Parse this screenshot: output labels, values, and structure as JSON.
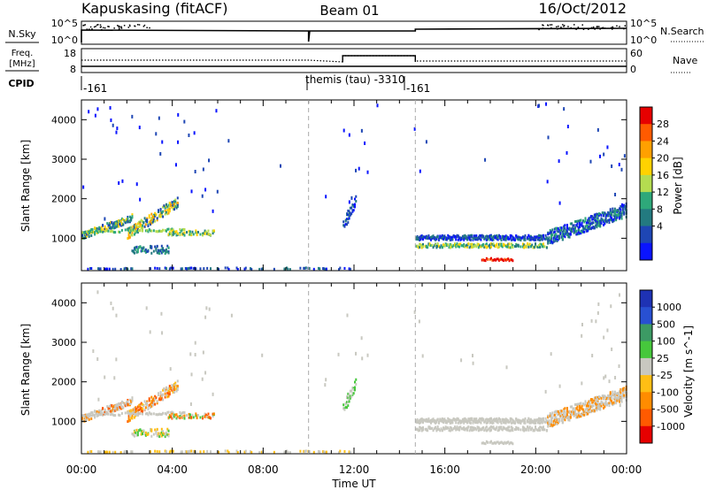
{
  "header": {
    "station": "Kapuskasing (fitACF)",
    "beam": "Beam 01",
    "date": "16/Oct/2012"
  },
  "top_panels": {
    "nsky_label": "N.Sky",
    "nsky_ticks": [
      "10^5",
      "10^0"
    ],
    "nsearch_label": "N.Search",
    "nsearch_ticks": [
      "10^5",
      "10^0"
    ],
    "freq_label_1": "Freq.",
    "freq_label_2": "[MHz]",
    "freq_ticks": [
      "18",
      "8"
    ],
    "nave_label": "Nave",
    "nave_ticks": [
      "60",
      "0"
    ],
    "cpid_label": "CPID",
    "cpid_segments": [
      {
        "label": "-161",
        "start_h": 0.0
      },
      {
        "label": "themis (tau)  -3310",
        "start_h": 10.0
      },
      {
        "label": "-161",
        "start_h": 14.7
      }
    ]
  },
  "chart_data": [
    {
      "type": "heatmap",
      "title": "",
      "ylabel": "Slant Range [km]",
      "xlabel": "",
      "xlim_hours": [
        0,
        24
      ],
      "ylim": [
        180,
        4500
      ],
      "yticks": [
        1000,
        2000,
        3000,
        4000
      ],
      "colorbar": {
        "label": "Power [dB]",
        "ticks": [
          "28",
          "24",
          "20",
          "16",
          "12",
          "8",
          "4"
        ],
        "colors": [
          "#e60000",
          "#ff5a00",
          "#ffa000",
          "#ffd200",
          "#b4dc50",
          "#2ea87a",
          "#237a80",
          "#1e46b4",
          "#0a14ff"
        ]
      }
    },
    {
      "type": "heatmap",
      "title": "",
      "ylabel": "Slant Range [km]",
      "xlabel": "Time UT",
      "xlim_hours": [
        0,
        24
      ],
      "ylim": [
        180,
        4500
      ],
      "yticks": [
        1000,
        2000,
        3000,
        4000
      ],
      "xticks": [
        "00:00",
        "04:00",
        "08:00",
        "12:00",
        "16:00",
        "20:00",
        "00:00"
      ],
      "colorbar": {
        "label": "Velocity [m s^-1]",
        "ticks": [
          "1000",
          "500",
          "100",
          "25",
          "-25",
          "-100",
          "-500",
          "-1000"
        ],
        "colors": [
          "#1e32b4",
          "#2850d2",
          "#3c9a64",
          "#46c83c",
          "#c8c8c0",
          "#ffbe14",
          "#ff8c00",
          "#ff5a00",
          "#e60000"
        ]
      }
    }
  ]
}
